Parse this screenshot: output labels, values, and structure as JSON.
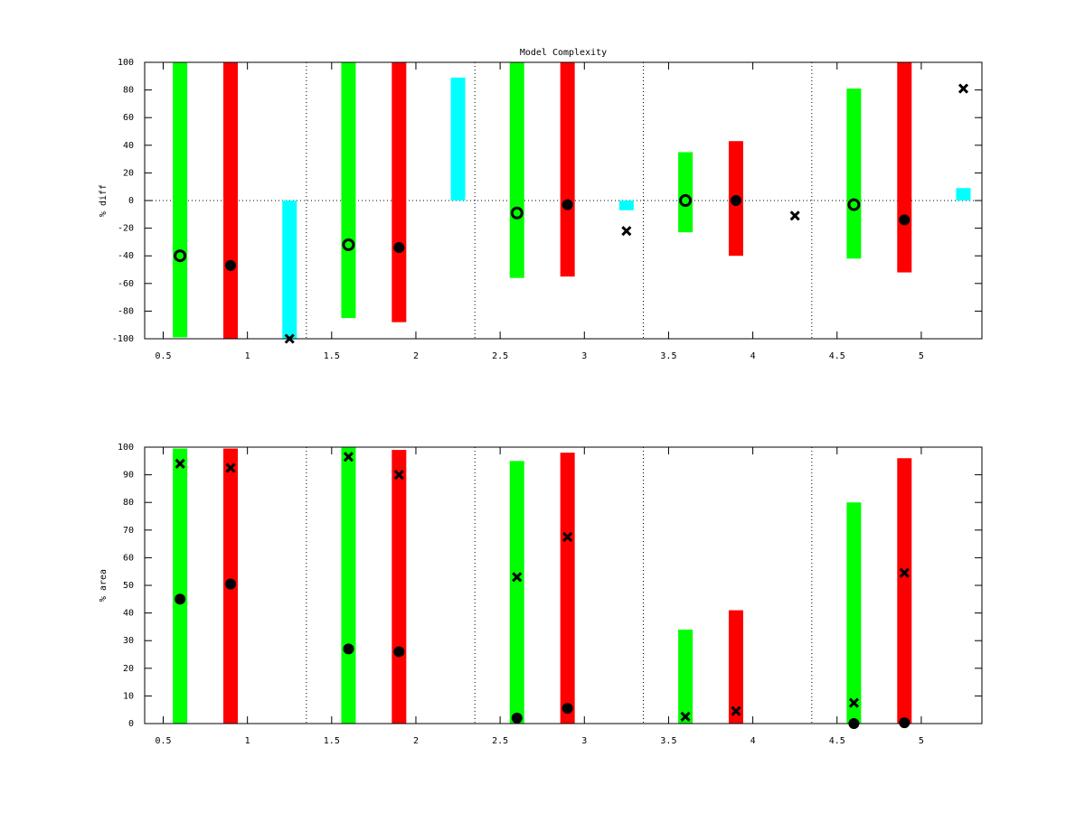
{
  "chart_data": [
    {
      "type": "range-bar",
      "title": "Model Complexity",
      "ylabel": "% diff",
      "xlim": [
        0.39,
        5.36
      ],
      "ylim": [
        -100,
        100
      ],
      "xticks": [
        0.5,
        1,
        1.5,
        2,
        2.5,
        3,
        3.5,
        4,
        4.5,
        5
      ],
      "yticks": [
        -100,
        -80,
        -60,
        -40,
        -20,
        0,
        20,
        40,
        60,
        80,
        100
      ],
      "vlines": [
        1.35,
        2.35,
        3.35,
        4.35
      ],
      "hlines": [
        0
      ],
      "bars": [
        {
          "color": "#00ff00",
          "x": [
            0.6,
            1.6,
            2.6,
            3.6,
            4.6
          ],
          "low": [
            -99,
            -85,
            -56,
            -23,
            -42
          ],
          "high": [
            100,
            100,
            100,
            35,
            81
          ]
        },
        {
          "color": "#ff0000",
          "x": [
            0.9,
            1.9,
            2.9,
            3.9,
            4.9
          ],
          "low": [
            -100,
            -88,
            -55,
            -40,
            -52
          ],
          "high": [
            100,
            100,
            100,
            43,
            100
          ]
        },
        {
          "color": "#00ffff",
          "x": [
            1.25,
            2.25,
            3.25,
            4.25,
            5.25
          ],
          "low": [
            -100,
            0,
            -7,
            0,
            0
          ],
          "high": [
            0,
            89,
            0,
            0,
            9
          ]
        }
      ],
      "markers": [
        {
          "marker": "open-circle",
          "color": "#000000",
          "x": [
            0.6,
            1.6,
            2.6,
            3.6,
            4.6
          ],
          "values": [
            -40,
            -32,
            -9,
            0,
            -3
          ]
        },
        {
          "marker": "filled-circle",
          "color": "#000000",
          "x": [
            0.9,
            1.9,
            2.9,
            3.9,
            4.9
          ],
          "values": [
            -47,
            -34,
            -3,
            0,
            -14
          ]
        },
        {
          "marker": "cross",
          "color": "#000000",
          "x": [
            1.25,
            2.25,
            3.25,
            4.25,
            5.25
          ],
          "values": [
            -100,
            null,
            -22,
            -11,
            81
          ]
        }
      ]
    },
    {
      "type": "bar",
      "ylabel": "% area",
      "xlim": [
        0.39,
        5.36
      ],
      "ylim": [
        0,
        100
      ],
      "xticks": [
        0.5,
        1,
        1.5,
        2,
        2.5,
        3,
        3.5,
        4,
        4.5,
        5
      ],
      "yticks": [
        0,
        10,
        20,
        30,
        40,
        50,
        60,
        70,
        80,
        90,
        100
      ],
      "vlines": [
        1.35,
        2.35,
        3.35,
        4.35
      ],
      "bars": [
        {
          "color": "#00ff00",
          "x": [
            0.6,
            1.6,
            2.6,
            3.6,
            4.6
          ],
          "values": [
            99.5,
            100,
            95,
            34,
            80
          ]
        },
        {
          "color": "#ff0000",
          "x": [
            0.9,
            1.9,
            2.9,
            3.9,
            4.9
          ],
          "values": [
            99.5,
            99,
            98,
            41,
            96
          ]
        }
      ],
      "markers": [
        {
          "marker": "filled-circle",
          "color": "#000000",
          "x": [
            0.6,
            1.6,
            2.6,
            3.6,
            4.6
          ],
          "values": [
            45,
            27,
            2,
            null,
            0
          ]
        },
        {
          "marker": "filled-circle",
          "color": "#000000",
          "x": [
            0.9,
            1.9,
            2.9,
            3.9,
            4.9
          ],
          "values": [
            50.5,
            26,
            5.5,
            null,
            0.3
          ]
        },
        {
          "marker": "cross",
          "color": "#000000",
          "x": [
            0.6,
            1.6,
            2.6,
            3.6,
            4.6
          ],
          "values": [
            94,
            96.5,
            53,
            2.5,
            7.5
          ]
        },
        {
          "marker": "cross",
          "color": "#000000",
          "x": [
            0.9,
            1.9,
            2.9,
            3.9,
            4.9
          ],
          "values": [
            92.5,
            90,
            67.5,
            4.5,
            54.5
          ]
        }
      ]
    }
  ]
}
